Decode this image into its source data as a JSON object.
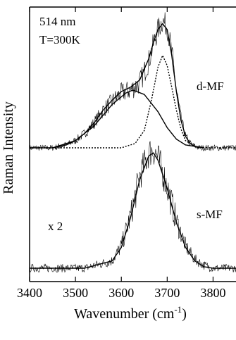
{
  "chart_data": [
    {
      "type": "line",
      "panel": "upper",
      "annotations": [
        "514 nm",
        "T=300K"
      ],
      "label": "d-MF",
      "x_range": [
        3400,
        3850
      ],
      "series": [
        {
          "style": "noisy measured trace",
          "x": [
            3400,
            3450,
            3480,
            3500,
            3520,
            3540,
            3560,
            3580,
            3600,
            3620,
            3640,
            3660,
            3670,
            3680,
            3690,
            3700,
            3710,
            3720,
            3730,
            3740,
            3750,
            3760,
            3770
          ],
          "values": [
            0.0,
            0.0,
            0.02,
            0.05,
            0.1,
            0.17,
            0.26,
            0.32,
            0.38,
            0.4,
            0.45,
            0.6,
            0.72,
            0.82,
            0.88,
            0.84,
            0.66,
            0.4,
            0.2,
            0.08,
            0.03,
            0.01,
            0.0
          ]
        },
        {
          "style": "solid fit (sum)",
          "x": [
            3400,
            3450,
            3480,
            3500,
            3520,
            3540,
            3560,
            3580,
            3600,
            3620,
            3640,
            3660,
            3670,
            3680,
            3690,
            3700,
            3710,
            3720,
            3730,
            3740,
            3750,
            3760,
            3770
          ],
          "values": [
            0.0,
            0.0,
            0.02,
            0.05,
            0.1,
            0.17,
            0.26,
            0.33,
            0.39,
            0.42,
            0.47,
            0.62,
            0.73,
            0.82,
            0.86,
            0.82,
            0.64,
            0.39,
            0.19,
            0.08,
            0.03,
            0.01,
            0.0
          ]
        },
        {
          "style": "solid component",
          "x": [
            3450,
            3500,
            3540,
            3580,
            3610,
            3625,
            3650,
            3680,
            3700,
            3720,
            3740,
            3760,
            3780
          ],
          "values": [
            0.0,
            0.05,
            0.15,
            0.3,
            0.38,
            0.4,
            0.37,
            0.25,
            0.14,
            0.06,
            0.02,
            0.01,
            0.0
          ]
        },
        {
          "style": "dotted component",
          "x": [
            3400,
            3600,
            3630,
            3650,
            3665,
            3680,
            3690,
            3700,
            3710,
            3720,
            3730,
            3740,
            3760,
            3790,
            3850
          ],
          "values": [
            0.0,
            0.0,
            0.03,
            0.12,
            0.32,
            0.56,
            0.64,
            0.57,
            0.42,
            0.26,
            0.13,
            0.05,
            0.01,
            0.0,
            0.0
          ]
        }
      ]
    },
    {
      "type": "line",
      "panel": "lower",
      "annotations": [
        "x 2"
      ],
      "label": "s-MF",
      "x_range": [
        3400,
        3850
      ],
      "series": [
        {
          "style": "noisy measured trace",
          "x": [
            3400,
            3520,
            3580,
            3600,
            3620,
            3640,
            3660,
            3670,
            3680,
            3700,
            3720,
            3740,
            3760,
            3780,
            3800,
            3850
          ],
          "values": [
            0.0,
            0.0,
            0.05,
            0.15,
            0.35,
            0.62,
            0.78,
            0.8,
            0.75,
            0.55,
            0.32,
            0.15,
            0.06,
            0.02,
            0.0,
            0.0
          ]
        },
        {
          "style": "solid fit",
          "x": [
            3400,
            3520,
            3580,
            3600,
            3620,
            3640,
            3660,
            3670,
            3680,
            3700,
            3720,
            3740,
            3760,
            3780,
            3800,
            3850
          ],
          "values": [
            0.0,
            0.0,
            0.05,
            0.14,
            0.34,
            0.6,
            0.76,
            0.78,
            0.73,
            0.54,
            0.31,
            0.14,
            0.05,
            0.01,
            0.0,
            0.0
          ]
        }
      ]
    }
  ],
  "axes": {
    "xlabel": "Wavenumber (cm",
    "xlabel_sup": "-1",
    "xlabel_close": ")",
    "ylabel": "Raman Intensity",
    "xlim": [
      3400,
      3850
    ],
    "xticks": [
      3400,
      3500,
      3600,
      3700,
      3800
    ],
    "xtick_labels": [
      "3400",
      "3500",
      "3600",
      "3700",
      "3800"
    ],
    "grid": false
  }
}
